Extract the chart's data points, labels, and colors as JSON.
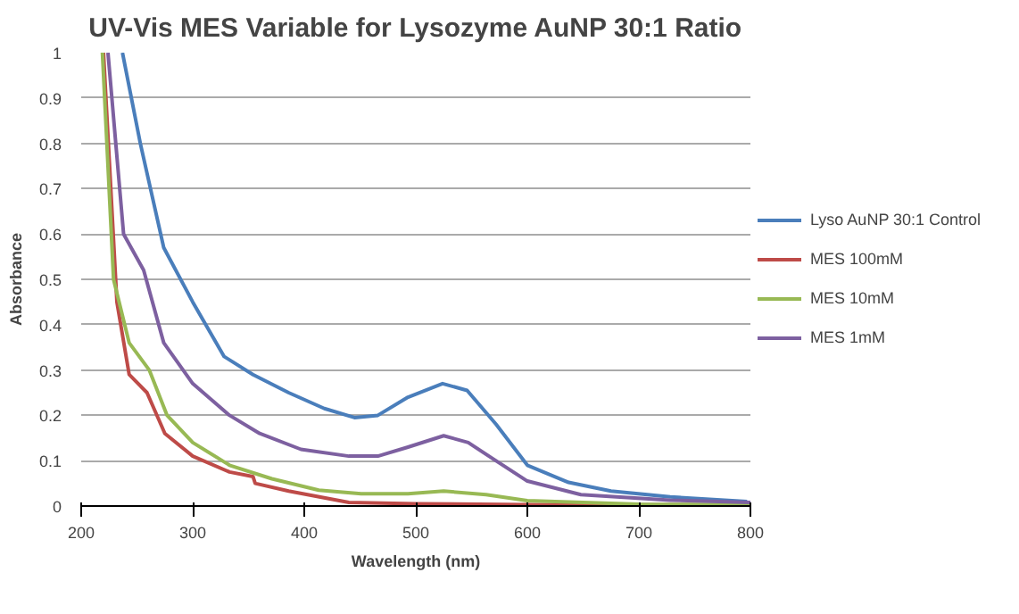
{
  "chart_data": {
    "type": "line",
    "title": "UV-Vis MES Variable for Lysozyme AuNP 30:1 Ratio",
    "xlabel": "Wavelength (nm)",
    "ylabel": "Absorbance",
    "xlim": [
      200,
      800
    ],
    "ylim": [
      0,
      1
    ],
    "xticks": [
      200,
      300,
      400,
      500,
      600,
      700,
      800
    ],
    "yticks": [
      0,
      0.1,
      0.2,
      0.3,
      0.4,
      0.5,
      0.6,
      0.7,
      0.8,
      0.9,
      1
    ],
    "grid": "y",
    "legend": "right",
    "line_style": "solid",
    "marker": "none",
    "series": [
      {
        "name": "Lyso AuNP 30:1 Control",
        "color": "#4a7ebb",
        "x": [
          237,
          253,
          274,
          300,
          328,
          354,
          386,
          418,
          445,
          466,
          493,
          524,
          546,
          572,
          600,
          637,
          675,
          728,
          797
        ],
        "values": [
          1,
          0.8,
          0.57,
          0.45,
          0.33,
          0.29,
          0.25,
          0.215,
          0.195,
          0.2,
          0.24,
          0.27,
          0.255,
          0.18,
          0.09,
          0.052,
          0.033,
          0.02,
          0.01
        ]
      },
      {
        "name": "MES 100mM",
        "color": "#be4b48",
        "x": [
          220,
          232,
          243,
          259,
          275,
          300,
          333,
          354,
          356,
          386,
          440,
          500,
          600,
          800
        ],
        "values": [
          1,
          0.45,
          0.29,
          0.25,
          0.16,
          0.11,
          0.075,
          0.065,
          0.05,
          0.033,
          0.008,
          0.005,
          0.003,
          0.002
        ]
      },
      {
        "name": "MES 10mM",
        "color": "#98b954",
        "x": [
          219,
          229,
          243,
          261,
          277,
          300,
          333,
          371,
          413,
          451,
          493,
          525,
          563,
          600,
          700,
          800
        ],
        "values": [
          1,
          0.5,
          0.36,
          0.3,
          0.2,
          0.14,
          0.09,
          0.06,
          0.035,
          0.027,
          0.027,
          0.033,
          0.025,
          0.012,
          0.004,
          0.003
        ]
      },
      {
        "name": "MES 1mM",
        "color": "#7d60a0",
        "x": [
          224,
          238,
          256,
          274,
          300,
          333,
          360,
          397,
          440,
          466,
          493,
          525,
          547,
          568,
          600,
          648,
          728,
          800
        ],
        "values": [
          1,
          0.6,
          0.52,
          0.36,
          0.27,
          0.2,
          0.16,
          0.125,
          0.11,
          0.11,
          0.13,
          0.155,
          0.14,
          0.106,
          0.055,
          0.025,
          0.013,
          0.008
        ]
      }
    ]
  }
}
